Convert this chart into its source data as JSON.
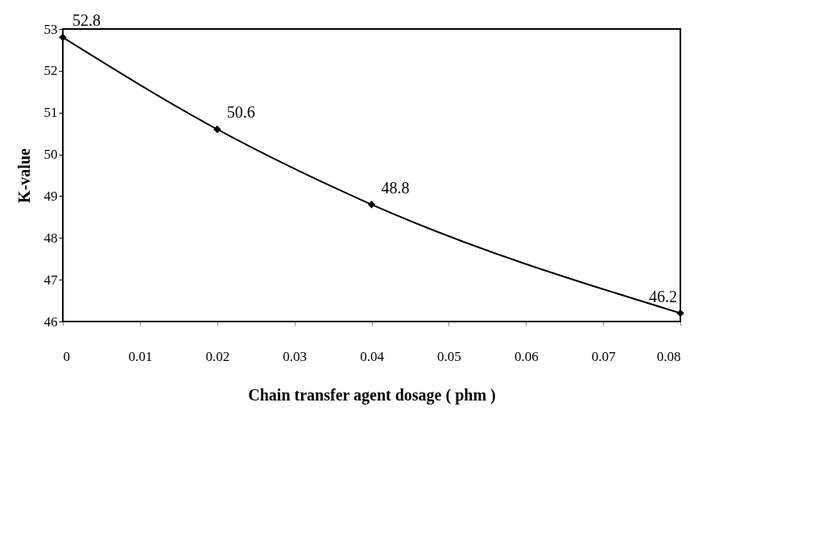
{
  "chart_data": {
    "type": "line",
    "xlabel": "Chain transfer agent dosage ( phm )",
    "ylabel": "K-value",
    "x": [
      0,
      0.02,
      0.04,
      0.08
    ],
    "series": [
      {
        "color": "#000000",
        "values": [
          52.8,
          50.6,
          48.8,
          46.2
        ]
      }
    ],
    "xlim": [
      0,
      0.08
    ],
    "xticks": [
      0,
      0.01,
      0.02,
      0.03,
      0.04,
      0.05,
      0.06,
      0.07,
      0.08
    ],
    "ylim": [
      46,
      53
    ],
    "yticks": [
      46,
      47,
      48,
      49,
      50,
      51,
      52,
      53
    ],
    "data_labels": true,
    "marker": "diamond",
    "line_style": "solid",
    "grid": false
  }
}
